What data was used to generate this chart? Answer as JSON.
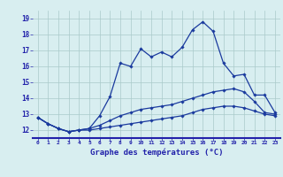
{
  "title": "Graphe des températures (°C)",
  "x_labels": [
    "0",
    "1",
    "2",
    "3",
    "4",
    "5",
    "6",
    "7",
    "8",
    "9",
    "10",
    "11",
    "12",
    "13",
    "14",
    "15",
    "16",
    "17",
    "18",
    "19",
    "20",
    "21",
    "22",
    "23"
  ],
  "x_values": [
    0,
    1,
    2,
    3,
    4,
    5,
    6,
    7,
    8,
    9,
    10,
    11,
    12,
    13,
    14,
    15,
    16,
    17,
    18,
    19,
    20,
    21,
    22,
    23
  ],
  "line1": [
    12.8,
    12.4,
    12.1,
    11.9,
    12.0,
    12.1,
    12.9,
    14.1,
    16.2,
    16.0,
    17.1,
    16.6,
    16.9,
    16.6,
    17.2,
    18.3,
    18.8,
    18.2,
    16.2,
    15.4,
    15.5,
    14.2,
    14.2,
    13.1
  ],
  "line2": [
    12.8,
    12.4,
    12.1,
    11.9,
    12.0,
    12.1,
    12.3,
    12.6,
    12.9,
    13.1,
    13.3,
    13.4,
    13.5,
    13.6,
    13.8,
    14.0,
    14.2,
    14.4,
    14.5,
    14.6,
    14.4,
    13.8,
    13.1,
    13.0
  ],
  "line3": [
    12.8,
    12.4,
    12.1,
    11.9,
    12.0,
    12.0,
    12.1,
    12.2,
    12.3,
    12.4,
    12.5,
    12.6,
    12.7,
    12.8,
    12.9,
    13.1,
    13.3,
    13.4,
    13.5,
    13.5,
    13.4,
    13.2,
    13.0,
    12.9
  ],
  "line_color": "#1a3a9e",
  "bg_color": "#d8eef0",
  "grid_color": "#aacaca",
  "ylim": [
    11.5,
    19.5
  ],
  "yticks": [
    12,
    13,
    14,
    15,
    16,
    17,
    18,
    19
  ],
  "tick_color": "#2222aa",
  "marker": "D",
  "marker_size": 1.8,
  "linewidth": 0.9
}
